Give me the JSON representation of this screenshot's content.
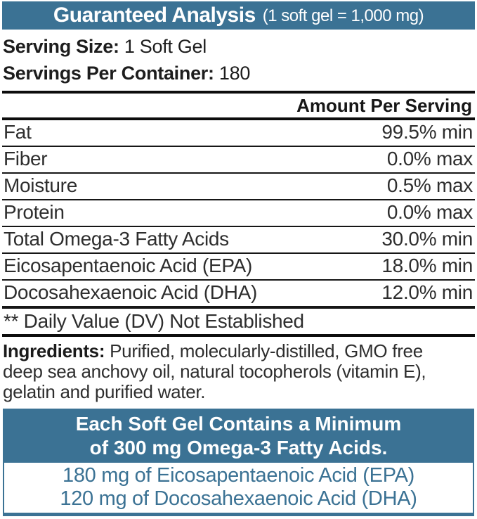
{
  "header": {
    "title": "Guaranteed Analysis",
    "subtitle": "(1 soft gel = 1,000 mg)"
  },
  "serving": {
    "size_label": "Serving Size:",
    "size_value": "1 Soft Gel",
    "per_container_label": "Servings Per Container:",
    "per_container_value": "180"
  },
  "analysis": {
    "column_header": "Amount Per Serving",
    "rows": [
      {
        "name": "Fat",
        "amount": "99.5% min"
      },
      {
        "name": "Fiber",
        "amount": "0.0% max"
      },
      {
        "name": "Moisture",
        "amount": "0.5% max"
      },
      {
        "name": "Protein",
        "amount": "0.0% max"
      },
      {
        "name": "Total Omega-3 Fatty Acids",
        "amount": "30.0% min"
      },
      {
        "name": "Eicosapentaenoic Acid (EPA)",
        "amount": "18.0% min"
      },
      {
        "name": "Docosahexaenoic Acid (DHA)",
        "amount": "12.0% min"
      }
    ],
    "footnote": "** Daily Value (DV) Not Established"
  },
  "ingredients": {
    "label": "Ingredients:",
    "lines": [
      "Purified, molecularly-distilled, GMO free",
      "deep sea anchovy oil, natural tocopherols (vitamin E),",
      "gelatin and purified water."
    ]
  },
  "highlight_box": {
    "header_line1": "Each Soft Gel Contains a Minimum",
    "header_line2": "of 300 mg Omega-3 Fatty Acids.",
    "body_line1": "180 mg of Eicosapentaenoic Acid (EPA)",
    "body_line2": "120 mg of Docosahexaenoic Acid (DHA)"
  },
  "colors": {
    "accent_blue": "#3b7294",
    "rule_black": "#0d0d0d",
    "text_white": "#ffffff"
  }
}
